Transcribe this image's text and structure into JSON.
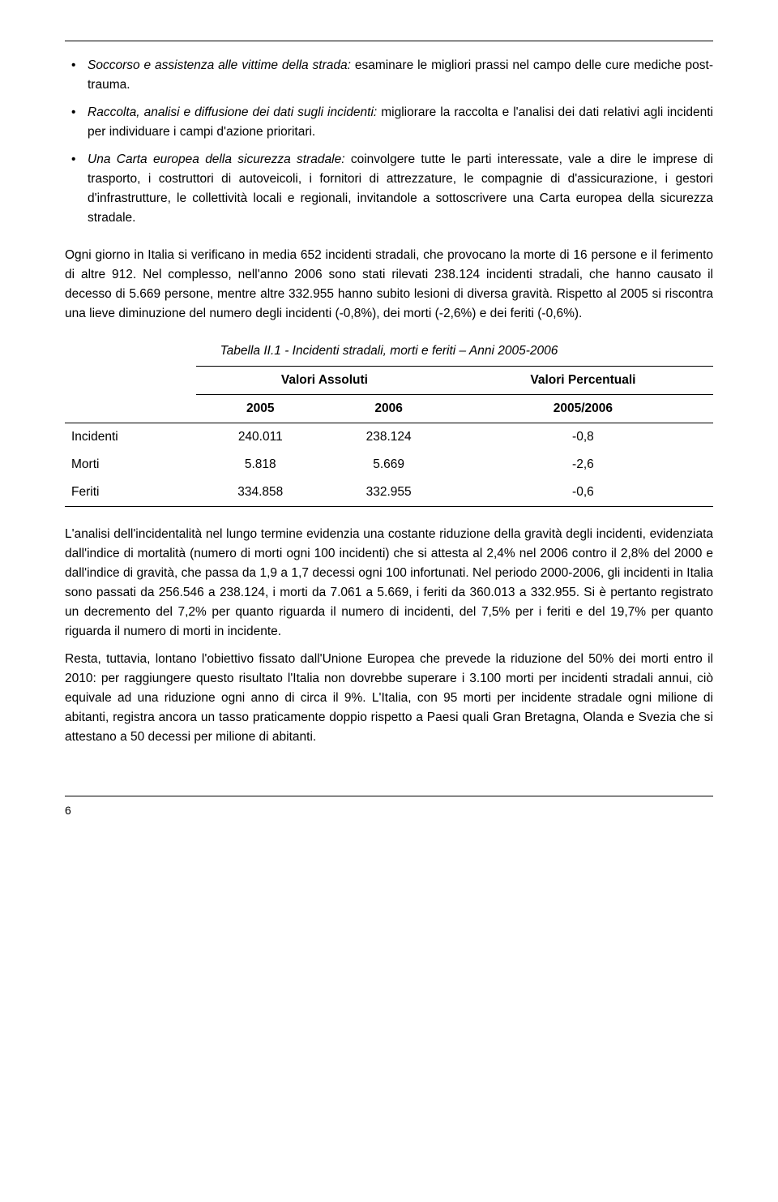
{
  "bullets": [
    {
      "title": "Soccorso e assistenza alle vittime della strada:",
      "text": " esaminare le migliori prassi nel campo delle cure mediche post-trauma."
    },
    {
      "title": "Raccolta, analisi e diffusione dei dati sugli incidenti:",
      "text": " migliorare la raccolta e l'analisi dei dati relativi agli incidenti per individuare i campi d'azione prioritari."
    },
    {
      "title": "Una Carta europea della sicurezza stradale:",
      "text": " coinvolgere tutte le parti interessate, vale a dire le imprese di trasporto, i costruttori di autoveicoli, i fornitori di attrezzature, le compagnie di d'assicurazione, i gestori d'infrastrutture, le collettività locali e regionali, invitandole a sottoscrivere una Carta europea della sicurezza stradale."
    }
  ],
  "para1": "Ogni giorno in Italia si verificano in media 652 incidenti stradali, che provocano la morte di 16 persone e il ferimento di altre 912. Nel complesso, nell'anno 2006 sono stati rilevati 238.124 incidenti stradali, che hanno causato il decesso di 5.669 persone, mentre altre 332.955 hanno subito lesioni di diversa gravità. Rispetto al 2005 si riscontra una lieve diminuzione del numero degli incidenti (-0,8%), dei morti (-2,6%) e dei feriti (-0,6%).",
  "table": {
    "caption": "Tabella II.1 - Incidenti stradali, morti e feriti – Anni 2005-2006",
    "header_abs": "Valori Assoluti",
    "header_pct": "Valori Percentuali",
    "col_2005": "2005",
    "col_2006": "2006",
    "col_ratio": "2005/2006",
    "rows": [
      {
        "label": "Incidenti",
        "v2005": "240.011",
        "v2006": "238.124",
        "pct": "-0,8"
      },
      {
        "label": "Morti",
        "v2005": "5.818",
        "v2006": "5.669",
        "pct": "-2,6"
      },
      {
        "label": "Feriti",
        "v2005": "334.858",
        "v2006": "332.955",
        "pct": "-0,6"
      }
    ]
  },
  "para2": "L'analisi dell'incidentalità nel lungo termine evidenzia una costante riduzione della gravità degli incidenti, evidenziata dall'indice di mortalità (numero di morti ogni 100 incidenti) che si attesta al 2,4% nel 2006 contro il 2,8% del 2000 e dall'indice di gravità, che passa da 1,9 a 1,7 decessi ogni 100 infortunati. Nel periodo 2000-2006, gli incidenti in Italia sono passati da 256.546 a 238.124, i morti da 7.061 a 5.669, i feriti da 360.013 a 332.955. Si è pertanto registrato un decremento del 7,2% per quanto riguarda il numero di incidenti, del 7,5% per i feriti e del 19,7% per quanto riguarda il numero di morti in incidente.",
  "para3": "Resta, tuttavia, lontano l'obiettivo fissato dall'Unione Europea che prevede la riduzione del 50% dei morti entro il 2010: per raggiungere questo risultato l'Italia non dovrebbe superare i 3.100 morti per incidenti stradali annui, ciò equivale ad una riduzione ogni anno di circa il 9%. L'Italia, con 95 morti per incidente stradale ogni milione di abitanti, registra ancora un tasso praticamente doppio rispetto a Paesi quali Gran Bretagna, Olanda e Svezia che si attestano a 50 decessi per milione di abitanti.",
  "page_number": "6"
}
